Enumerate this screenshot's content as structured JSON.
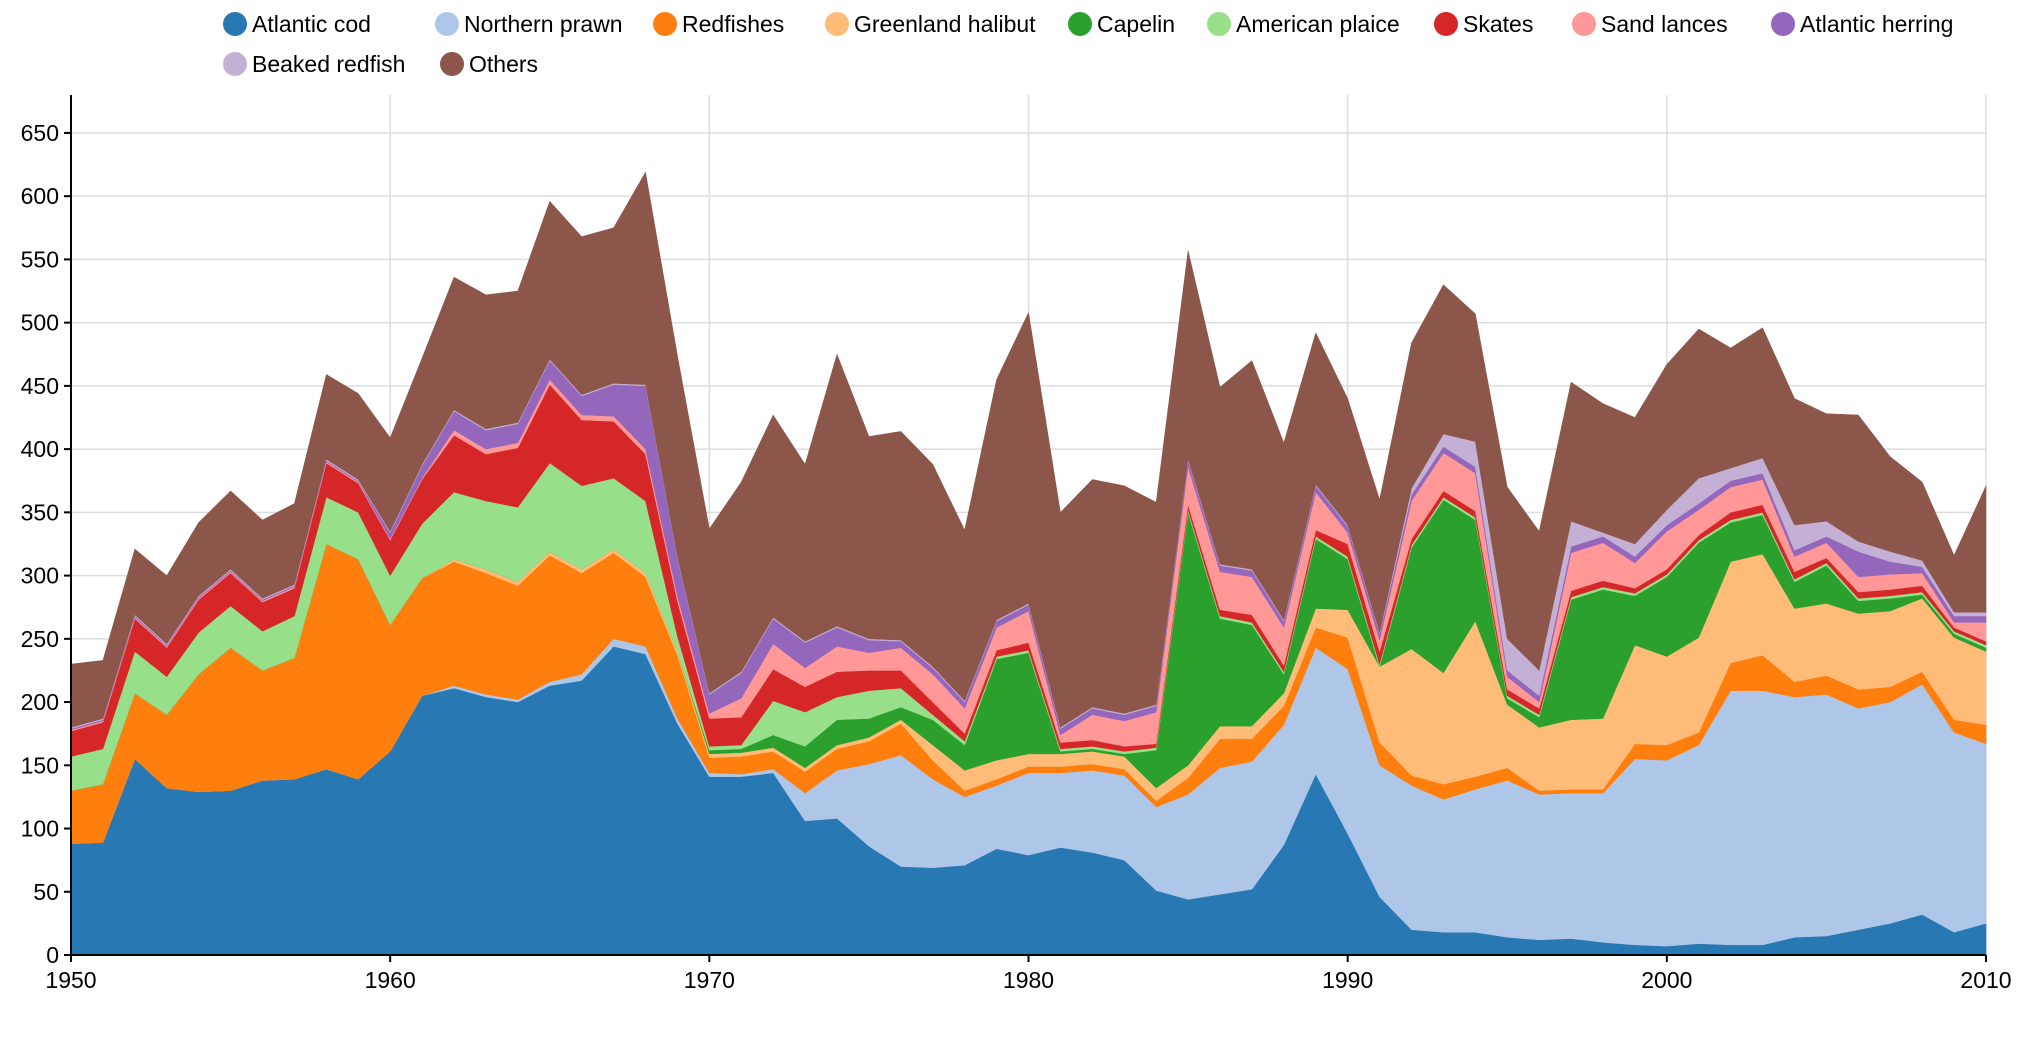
{
  "chart_data": {
    "type": "area",
    "stacked": true,
    "title": "",
    "xlabel": "",
    "ylabel": "",
    "xlim": [
      1950,
      2010
    ],
    "ylim": [
      0,
      680
    ],
    "x_ticks": [
      1950,
      1960,
      1970,
      1980,
      1990,
      2000,
      2010
    ],
    "y_ticks": [
      0,
      50,
      100,
      150,
      200,
      250,
      300,
      350,
      400,
      450,
      500,
      550,
      600,
      650
    ],
    "grid": true,
    "legend_position": "top",
    "x": [
      1950,
      1951,
      1952,
      1953,
      1954,
      1955,
      1956,
      1957,
      1958,
      1959,
      1960,
      1961,
      1962,
      1963,
      1964,
      1965,
      1966,
      1967,
      1968,
      1969,
      1970,
      1971,
      1972,
      1973,
      1974,
      1975,
      1976,
      1977,
      1978,
      1979,
      1980,
      1981,
      1982,
      1983,
      1984,
      1985,
      1986,
      1987,
      1988,
      1989,
      1990,
      1991,
      1992,
      1993,
      1994,
      1995,
      1996,
      1997,
      1998,
      1999,
      2000,
      2001,
      2002,
      2003,
      2004,
      2005,
      2006,
      2007,
      2008,
      2009,
      2010
    ],
    "series": [
      {
        "name": "Atlantic cod",
        "color": "#2878b4",
        "values": [
          88,
          89,
          155,
          132,
          129,
          130,
          138,
          139,
          147,
          139,
          161,
          205,
          211,
          204,
          200,
          213,
          217,
          244,
          238,
          183,
          141,
          141,
          144,
          106,
          108,
          86,
          70,
          69,
          71,
          84,
          79,
          85,
          81,
          75,
          51,
          44,
          48,
          52,
          87,
          143,
          96,
          46,
          20,
          18,
          18,
          14,
          12,
          13,
          10,
          8,
          7,
          9,
          8,
          8,
          14,
          15,
          20,
          25,
          32,
          18,
          25
        ]
      },
      {
        "name": "Northern prawn",
        "color": "#aec7e8",
        "values": [
          0,
          0,
          0,
          0,
          0,
          0,
          0,
          0,
          0,
          0,
          0,
          0,
          2,
          2,
          2,
          3,
          5,
          6,
          6,
          4,
          3,
          2,
          3,
          22,
          38,
          65,
          88,
          70,
          54,
          50,
          65,
          59,
          65,
          67,
          66,
          83,
          100,
          101,
          95,
          100,
          130,
          104,
          114,
          105,
          113,
          124,
          115,
          115,
          118,
          147,
          147,
          157,
          201,
          201,
          190,
          191,
          175,
          175,
          182,
          158,
          142
        ]
      },
      {
        "name": "Redfishes",
        "color": "#fe7f0e",
        "values": [
          42,
          46,
          52,
          58,
          93,
          113,
          87,
          96,
          178,
          174,
          100,
          93,
          98,
          96,
          90,
          100,
          80,
          68,
          55,
          50,
          12,
          14,
          14,
          17,
          17,
          18,
          25,
          15,
          5,
          5,
          5,
          5,
          5,
          5,
          5,
          13,
          23,
          18,
          15,
          16,
          25,
          18,
          8,
          12,
          10,
          10,
          3,
          3,
          3,
          12,
          12,
          10,
          22,
          28,
          12,
          15,
          15,
          12,
          10,
          10,
          15
        ]
      },
      {
        "name": "Greenland halibut",
        "color": "#ffbb78",
        "values": [
          0,
          0,
          0,
          0,
          0,
          0,
          0,
          0,
          0,
          0,
          0,
          0,
          2,
          3,
          3,
          3,
          3,
          3,
          3,
          3,
          3,
          3,
          3,
          3,
          3,
          3,
          3,
          12,
          16,
          15,
          10,
          10,
          10,
          10,
          10,
          10,
          10,
          10,
          10,
          15,
          22,
          60,
          100,
          88,
          123,
          50,
          50,
          55,
          56,
          78,
          70,
          75,
          80,
          80,
          58,
          57,
          60,
          60,
          58,
          65,
          58
        ]
      },
      {
        "name": "Capelin",
        "color": "#2ca02c",
        "values": [
          0,
          0,
          0,
          0,
          0,
          0,
          0,
          0,
          0,
          0,
          0,
          0,
          0,
          0,
          0,
          0,
          0,
          0,
          0,
          0,
          3,
          3,
          10,
          17,
          20,
          15,
          10,
          20,
          20,
          80,
          80,
          2,
          2,
          2,
          30,
          200,
          85,
          80,
          15,
          55,
          40,
          0,
          80,
          137,
          80,
          5,
          8,
          95,
          102,
          39,
          63,
          75,
          31,
          31,
          21,
          30,
          10,
          10,
          3,
          3,
          3
        ]
      },
      {
        "name": "American plaice",
        "color": "#98df8a",
        "values": [
          27,
          28,
          33,
          30,
          33,
          33,
          31,
          33,
          37,
          37,
          39,
          43,
          53,
          54,
          59,
          70,
          66,
          56,
          57,
          12,
          3,
          3,
          27,
          27,
          18,
          22,
          15,
          4,
          3,
          2,
          2,
          2,
          2,
          2,
          2,
          2,
          2,
          2,
          2,
          2,
          2,
          2,
          2,
          2,
          2,
          2,
          2,
          2,
          2,
          2,
          2,
          2,
          2,
          2,
          2,
          2,
          2,
          2,
          2,
          2,
          2
        ]
      },
      {
        "name": "Skates",
        "color": "#d62728",
        "values": [
          20,
          21,
          26,
          23,
          26,
          26,
          23,
          22,
          27,
          23,
          28,
          35,
          45,
          37,
          47,
          62,
          52,
          45,
          37,
          28,
          22,
          22,
          25,
          20,
          20,
          16,
          14,
          10,
          6,
          5,
          6,
          5,
          5,
          4,
          3,
          4,
          5,
          6,
          5,
          5,
          10,
          10,
          5,
          5,
          5,
          5,
          5,
          5,
          5,
          4,
          4,
          4,
          6,
          6,
          6,
          4,
          5,
          5,
          5,
          3,
          3
        ]
      },
      {
        "name": "Sand lances",
        "color": "#ff9896",
        "values": [
          1,
          1,
          1,
          1,
          1,
          1,
          1,
          1,
          1,
          1,
          1,
          1,
          4,
          4,
          4,
          4,
          4,
          4,
          4,
          4,
          4,
          15,
          20,
          15,
          20,
          14,
          18,
          22,
          20,
          18,
          25,
          6,
          20,
          20,
          25,
          30,
          30,
          30,
          30,
          30,
          9,
          9,
          30,
          30,
          30,
          10,
          5,
          30,
          30,
          20,
          30,
          20,
          20,
          20,
          12,
          12,
          12,
          12,
          10,
          4,
          15
        ]
      },
      {
        "name": "Atlantic herring",
        "color": "#9467bd",
        "values": [
          1,
          1,
          1,
          1,
          1,
          1,
          1,
          1,
          1,
          1,
          5,
          10,
          15,
          15,
          15,
          15,
          15,
          25,
          50,
          30,
          15,
          20,
          20,
          20,
          15,
          10,
          5,
          5,
          5,
          5,
          5,
          5,
          5,
          5,
          5,
          5,
          5,
          5,
          5,
          5,
          5,
          5,
          5,
          5,
          5,
          5,
          5,
          5,
          5,
          5,
          5,
          5,
          5,
          5,
          5,
          5,
          20,
          10,
          5,
          5,
          5
        ]
      },
      {
        "name": "Beaked redfish",
        "color": "#c5b0d5",
        "values": [
          1,
          1,
          1,
          1,
          1,
          1,
          1,
          1,
          1,
          1,
          1,
          1,
          1,
          1,
          1,
          1,
          1,
          1,
          1,
          1,
          1,
          1,
          1,
          1,
          1,
          1,
          1,
          1,
          1,
          1,
          1,
          1,
          1,
          1,
          1,
          1,
          1,
          1,
          1,
          1,
          1,
          1,
          5,
          10,
          20,
          25,
          20,
          20,
          3,
          10,
          12,
          20,
          10,
          12,
          20,
          12,
          8,
          8,
          5,
          3,
          3
        ]
      },
      {
        "name": "Others",
        "color": "#8c564b",
        "values": [
          50,
          46,
          52,
          54,
          58,
          62,
          62,
          64,
          67,
          68,
          74,
          84,
          105,
          106,
          104,
          125,
          125,
          123,
          168,
          159,
          130,
          150,
          160,
          140,
          215,
          160,
          165,
          160,
          135,
          190,
          230,
          170,
          180,
          180,
          160,
          165,
          140,
          165,
          140,
          120,
          100,
          105,
          115,
          118,
          101,
          120,
          110,
          110,
          102,
          100,
          115,
          118,
          95,
          103,
          100,
          85,
          100,
          75,
          62,
          45,
          100
        ]
      }
    ]
  }
}
